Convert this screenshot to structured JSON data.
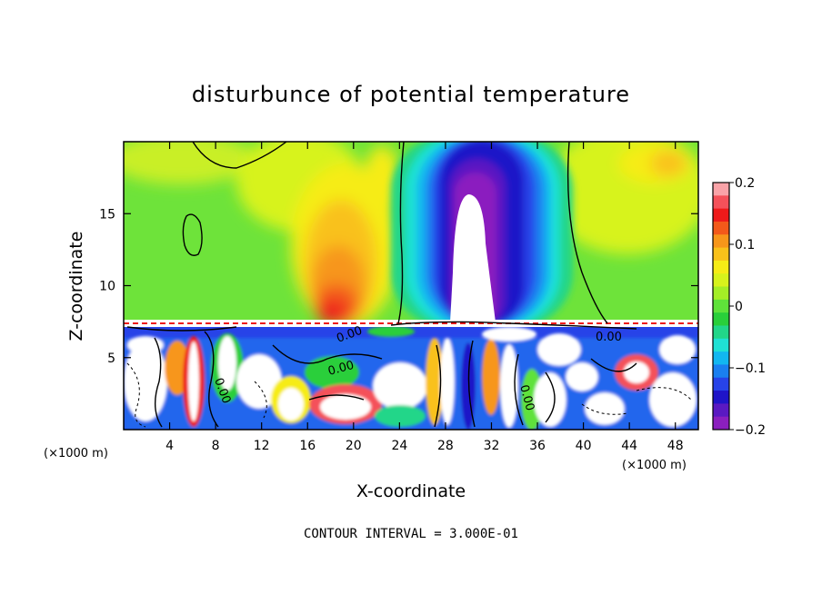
{
  "chart_data": {
    "type": "heatmap",
    "title": "disturbunce of potential temperature",
    "xlabel": "X-coordinate",
    "ylabel": "Z-coordinate",
    "x_unit_left": "(×1000 m)",
    "x_unit_right": "(×1000 m)",
    "xlim": [
      0,
      50
    ],
    "ylim": [
      0,
      20
    ],
    "xticks": [
      4,
      8,
      12,
      16,
      20,
      24,
      28,
      32,
      36,
      40,
      44,
      48
    ],
    "yticks": [
      5,
      10,
      15
    ],
    "colorbar": {
      "min": -0.2,
      "max": 0.2,
      "ticks": [
        0.2,
        0.1,
        0,
        -0.1,
        -0.2
      ],
      "tick_labels": [
        "0.2",
        "0.1",
        "0",
        "−0.1",
        "−0.2"
      ],
      "colors": [
        "#f9a3a8",
        "#f4515a",
        "#ee1a1a",
        "#f3591a",
        "#f7961a",
        "#f9c11a",
        "#f6ec16",
        "#d7f31c",
        "#a4ee26",
        "#5fe23a",
        "#29cf3a",
        "#22d689",
        "#1fe1d4",
        "#12b7f0",
        "#1a7ff0",
        "#2743e8",
        "#1f14c8",
        "#5a19c2",
        "#8b1fbf"
      ]
    },
    "contour_labels": [
      "0.00",
      "0.00",
      "0.00",
      "0.00",
      "0.00"
    ],
    "footer": "CONTOUR INTERVAL = 3.000E-01"
  }
}
